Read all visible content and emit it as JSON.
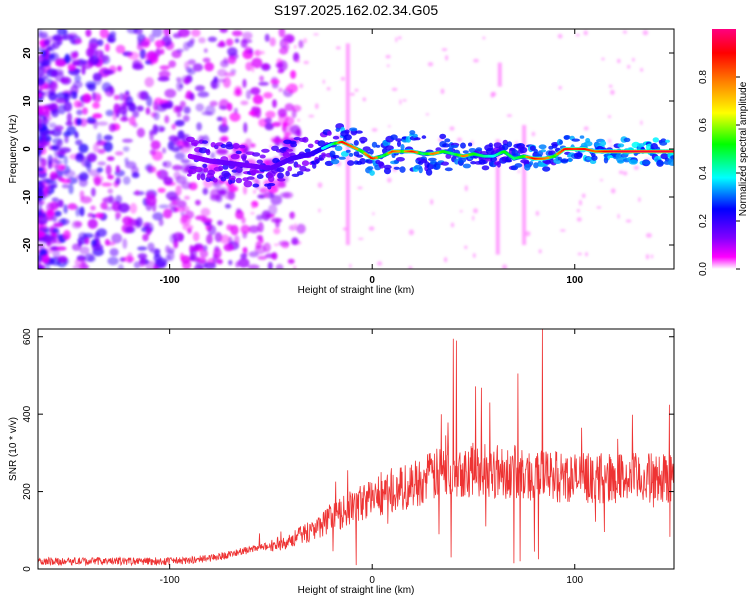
{
  "title": "S197.2025.162.02.34.G05",
  "chart_data": [
    {
      "type": "heatmap",
      "xlabel": "Height of straight line (km)",
      "ylabel": "Frequency (Hz)",
      "xlim": [
        -165,
        149
      ],
      "ylim": [
        -25,
        25
      ],
      "xticks": [
        -100,
        0,
        100
      ],
      "yticks": [
        -20,
        -10,
        0,
        10,
        20
      ],
      "colorbar": {
        "label": "Normalized spectral amplitude",
        "range": [
          0,
          1
        ],
        "ticks": [
          "0.0",
          "0.2",
          "0.4",
          "0.6",
          "0.8"
        ],
        "colors": [
          "#ffffff",
          "#ff00ff",
          "#8000ff",
          "#0000ff",
          "#00ffff",
          "#00ff00",
          "#ffff00",
          "#ff8000",
          "#ff0000",
          "#ff0080"
        ]
      },
      "ridge": {
        "x": [
          -90,
          -80,
          -70,
          -60,
          -50,
          -40,
          -30,
          -20,
          -15,
          -10,
          -5,
          0,
          5,
          10,
          15,
          20,
          25,
          30,
          35,
          40,
          45,
          50,
          55,
          60,
          65,
          70,
          75,
          80,
          85,
          90,
          95,
          100,
          105,
          110,
          115,
          120,
          130,
          140,
          149
        ],
        "freq": [
          -1.5,
          -2.5,
          -3,
          -3.5,
          -4,
          -2,
          -1,
          1,
          1.5,
          0.5,
          -0.5,
          -2,
          -1.5,
          -0.5,
          -0.5,
          -0.5,
          -1,
          -1,
          -0.5,
          -1,
          -1.5,
          -1,
          -1.5,
          -1.5,
          -0.5,
          -2,
          -1.5,
          -2,
          -2,
          -1.5,
          0,
          0,
          0,
          -0.5,
          -0.5,
          -0.5,
          -0.5,
          -0.5,
          -0.5
        ],
        "amp": [
          0.25,
          0.3,
          0.35,
          0.3,
          0.35,
          0.4,
          0.45,
          0.55,
          0.9,
          0.8,
          0.7,
          0.9,
          0.6,
          0.85,
          0.7,
          0.9,
          0.6,
          0.8,
          0.7,
          0.6,
          0.8,
          0.7,
          0.6,
          0.5,
          0.7,
          0.6,
          0.7,
          0.9,
          0.8,
          0.7,
          0.9,
          0.85,
          0.9,
          0.8,
          0.9,
          0.95,
          0.95,
          0.95,
          0.95
        ]
      }
    },
    {
      "type": "line",
      "xlabel": "Height of straight line (km)",
      "ylabel": "SNR (10 * v/v)",
      "xlim": [
        -165,
        149
      ],
      "ylim": [
        0,
        620
      ],
      "xticks": [
        -100,
        0,
        100
      ],
      "yticks": [
        0,
        200,
        400,
        600
      ],
      "color": "#ee3333",
      "envelope": {
        "x": [
          -165,
          -140,
          -120,
          -100,
          -90,
          -80,
          -70,
          -60,
          -50,
          -40,
          -30,
          -20,
          -10,
          0,
          10,
          20,
          30,
          35,
          40,
          45,
          50,
          60,
          70,
          75,
          80,
          85,
          90,
          100,
          110,
          120,
          130,
          140,
          149
        ],
        "y": [
          20,
          20,
          20,
          20,
          22,
          28,
          38,
          50,
          60,
          75,
          100,
          130,
          160,
          185,
          200,
          220,
          240,
          250,
          260,
          255,
          255,
          255,
          250,
          240,
          245,
          240,
          240,
          235,
          235,
          235,
          235,
          235,
          235
        ]
      },
      "peaks": [
        {
          "x": 40,
          "y": 595
        },
        {
          "x": 41.5,
          "y": 590
        },
        {
          "x": 34,
          "y": 400
        },
        {
          "x": 72,
          "y": 505
        },
        {
          "x": 84,
          "y": 620
        },
        {
          "x": 58,
          "y": 430
        },
        {
          "x": -12,
          "y": 255
        }
      ],
      "dips": [
        {
          "x": 33,
          "y": 90
        },
        {
          "x": 39,
          "y": 30
        },
        {
          "x": 56,
          "y": 110
        },
        {
          "x": 70,
          "y": 15
        },
        {
          "x": 73,
          "y": 20
        },
        {
          "x": 80,
          "y": 45
        },
        {
          "x": 82,
          "y": 25
        },
        {
          "x": -8,
          "y": 10
        }
      ]
    }
  ]
}
